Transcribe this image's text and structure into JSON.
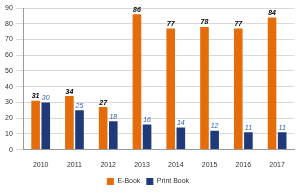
{
  "chart_data": {
    "type": "bar",
    "categories": [
      "2010",
      "2011",
      "2012",
      "2013",
      "2014",
      "2015",
      "2016",
      "2017"
    ],
    "series": [
      {
        "name": "E-Book",
        "color": "#e46c0a",
        "values": [
          31,
          34,
          27,
          86,
          77,
          78,
          77,
          84
        ]
      },
      {
        "name": "Print Book",
        "color": "#1f3a7a",
        "values": [
          30,
          25,
          18,
          16,
          14,
          12,
          11,
          11
        ]
      }
    ],
    "ylim": [
      0,
      90
    ],
    "yticks": [
      0,
      10,
      20,
      30,
      40,
      50,
      60,
      70,
      80,
      90
    ],
    "grid": true,
    "legend": "bottom",
    "data_labels": true
  }
}
